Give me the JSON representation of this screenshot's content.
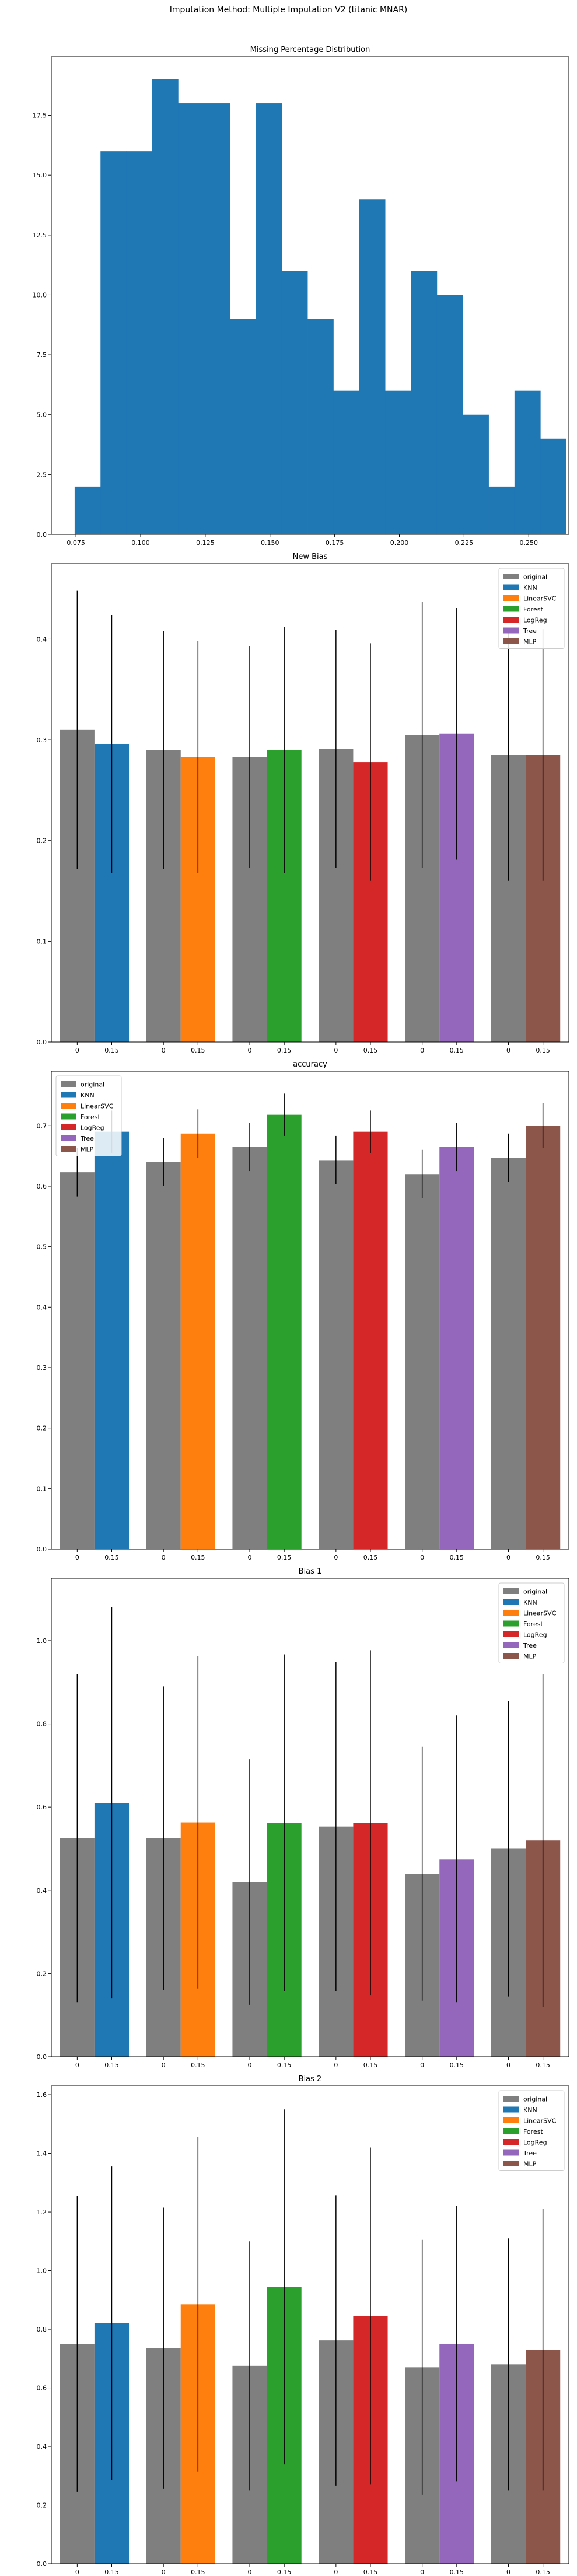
{
  "figure": {
    "suptitle": "Imputation Method: Multiple Imputation V2 (titanic MNAR)"
  },
  "chart_data": [
    {
      "type": "bar",
      "subtype": "histogram",
      "title": "Missing Percentage Distribution",
      "xlabel": "",
      "ylabel": "",
      "xlim": [
        0.0655,
        0.2655
      ],
      "ylim": [
        0,
        19.95
      ],
      "xticks": [
        0.075,
        0.1,
        0.125,
        0.15,
        0.175,
        0.2,
        0.225,
        0.25
      ],
      "xtick_labels": [
        "0.075",
        "0.100",
        "0.125",
        "0.150",
        "0.175",
        "0.200",
        "0.225",
        "0.250"
      ],
      "yticks": [
        0,
        2.5,
        5,
        7.5,
        10,
        12.5,
        15,
        17.5
      ],
      "ytick_labels": [
        "0.0",
        "2.5",
        "5.0",
        "7.5",
        "10.0",
        "12.5",
        "15.0",
        "17.5"
      ],
      "bin_edges": [
        0.0745,
        0.0845,
        0.0945,
        0.1045,
        0.1145,
        0.1245,
        0.1345,
        0.1445,
        0.1545,
        0.1645,
        0.1745,
        0.1845,
        0.1945,
        0.2045,
        0.2145,
        0.2245,
        0.2345,
        0.2445,
        0.2545,
        0.2645
      ],
      "values": [
        2,
        16,
        16,
        19,
        18,
        18,
        9,
        18,
        11,
        9,
        6,
        14,
        6,
        11,
        10,
        5,
        2,
        6,
        4
      ],
      "color": "#1f77b4",
      "grid": false
    },
    {
      "type": "bar",
      "subtype": "grouped",
      "title": "New Bias",
      "ylim": [
        0,
        0.475
      ],
      "yticks": [
        0,
        0.1,
        0.2,
        0.3,
        0.4
      ],
      "ytick_labels": [
        "0.0",
        "0.1",
        "0.2",
        "0.3",
        "0.4"
      ],
      "group_tick_labels": [
        "0",
        "0.15"
      ],
      "legend": "top-right",
      "groups": [
        {
          "name": "KNN",
          "original": 0.31,
          "original_err": 0.138,
          "imputed": 0.296,
          "imputed_err": 0.128
        },
        {
          "name": "LinearSVC",
          "original": 0.29,
          "original_err": 0.118,
          "imputed": 0.283,
          "imputed_err": 0.115
        },
        {
          "name": "Forest",
          "original": 0.283,
          "original_err": 0.11,
          "imputed": 0.29,
          "imputed_err": 0.122
        },
        {
          "name": "LogReg",
          "original": 0.291,
          "original_err": 0.118,
          "imputed": 0.278,
          "imputed_err": 0.118
        },
        {
          "name": "Tree",
          "original": 0.305,
          "original_err": 0.132,
          "imputed": 0.306,
          "imputed_err": 0.125
        },
        {
          "name": "MLP",
          "original": 0.285,
          "original_err": 0.125,
          "imputed": 0.285,
          "imputed_err": 0.125
        }
      ]
    },
    {
      "type": "bar",
      "subtype": "grouped",
      "title": "accuracy",
      "ylim": [
        0,
        0.79
      ],
      "yticks": [
        0,
        0.1,
        0.2,
        0.3,
        0.4,
        0.5,
        0.6,
        0.7
      ],
      "ytick_labels": [
        "0.0",
        "0.1",
        "0.2",
        "0.3",
        "0.4",
        "0.5",
        "0.6",
        "0.7"
      ],
      "group_tick_labels": [
        "0",
        "0.15"
      ],
      "legend": "top-left",
      "groups": [
        {
          "name": "KNN",
          "original": 0.623,
          "original_err": 0.04,
          "imputed": 0.69,
          "imputed_err": 0.035
        },
        {
          "name": "LinearSVC",
          "original": 0.64,
          "original_err": 0.04,
          "imputed": 0.687,
          "imputed_err": 0.04
        },
        {
          "name": "Forest",
          "original": 0.665,
          "original_err": 0.04,
          "imputed": 0.718,
          "imputed_err": 0.035
        },
        {
          "name": "LogReg",
          "original": 0.643,
          "original_err": 0.04,
          "imputed": 0.69,
          "imputed_err": 0.035
        },
        {
          "name": "Tree",
          "original": 0.62,
          "original_err": 0.04,
          "imputed": 0.665,
          "imputed_err": 0.04
        },
        {
          "name": "MLP",
          "original": 0.647,
          "original_err": 0.04,
          "imputed": 0.7,
          "imputed_err": 0.037
        }
      ]
    },
    {
      "type": "bar",
      "subtype": "grouped",
      "title": "Bias 1",
      "ylim": [
        0,
        1.15
      ],
      "yticks": [
        0,
        0.2,
        0.4,
        0.6,
        0.8,
        1.0
      ],
      "ytick_labels": [
        "0.0",
        "0.2",
        "0.4",
        "0.6",
        "0.8",
        "1.0"
      ],
      "group_tick_labels": [
        "0",
        "0.15"
      ],
      "legend": "top-right",
      "groups": [
        {
          "name": "KNN",
          "original": 0.525,
          "original_err": 0.395,
          "imputed": 0.61,
          "imputed_err": 0.47
        },
        {
          "name": "LinearSVC",
          "original": 0.525,
          "original_err": 0.365,
          "imputed": 0.563,
          "imputed_err": 0.4
        },
        {
          "name": "Forest",
          "original": 0.42,
          "original_err": 0.295,
          "imputed": 0.562,
          "imputed_err": 0.405
        },
        {
          "name": "LogReg",
          "original": 0.553,
          "original_err": 0.395,
          "imputed": 0.562,
          "imputed_err": 0.415
        },
        {
          "name": "Tree",
          "original": 0.44,
          "original_err": 0.305,
          "imputed": 0.475,
          "imputed_err": 0.345
        },
        {
          "name": "MLP",
          "original": 0.5,
          "original_err": 0.355,
          "imputed": 0.52,
          "imputed_err": 0.4
        }
      ]
    },
    {
      "type": "bar",
      "subtype": "grouped",
      "title": "Bias 2",
      "ylim": [
        0,
        1.63
      ],
      "yticks": [
        0,
        0.2,
        0.4,
        0.6,
        0.8,
        1.0,
        1.2,
        1.4,
        1.6
      ],
      "ytick_labels": [
        "0.0",
        "0.2",
        "0.4",
        "0.6",
        "0.8",
        "1.0",
        "1.2",
        "1.4",
        "1.6"
      ],
      "group_tick_labels": [
        "0",
        "0.15"
      ],
      "legend": "top-right",
      "groups": [
        {
          "name": "KNN",
          "original": 0.75,
          "original_err": 0.505,
          "imputed": 0.82,
          "imputed_err": 0.535
        },
        {
          "name": "LinearSVC",
          "original": 0.735,
          "original_err": 0.48,
          "imputed": 0.885,
          "imputed_err": 0.57
        },
        {
          "name": "Forest",
          "original": 0.675,
          "original_err": 0.425,
          "imputed": 0.945,
          "imputed_err": 0.605
        },
        {
          "name": "LogReg",
          "original": 0.762,
          "original_err": 0.495,
          "imputed": 0.845,
          "imputed_err": 0.575
        },
        {
          "name": "Tree",
          "original": 0.67,
          "original_err": 0.435,
          "imputed": 0.75,
          "imputed_err": 0.47
        },
        {
          "name": "MLP",
          "original": 0.68,
          "original_err": 0.43,
          "imputed": 0.73,
          "imputed_err": 0.48
        }
      ]
    }
  ],
  "legend_entries": [
    {
      "label": "original",
      "color": "#7f7f7f"
    },
    {
      "label": "KNN",
      "color": "#1f77b4"
    },
    {
      "label": "LinearSVC",
      "color": "#ff7f0e"
    },
    {
      "label": "Forest",
      "color": "#2ca02c"
    },
    {
      "label": "LogReg",
      "color": "#d62728"
    },
    {
      "label": "Tree",
      "color": "#9467bd"
    },
    {
      "label": "MLP",
      "color": "#8c564b"
    }
  ],
  "colors": {
    "original": "#7f7f7f",
    "histogram": "#1f77b4",
    "error_bar": "#000000",
    "axes": "#000000",
    "background": "#ffffff"
  }
}
